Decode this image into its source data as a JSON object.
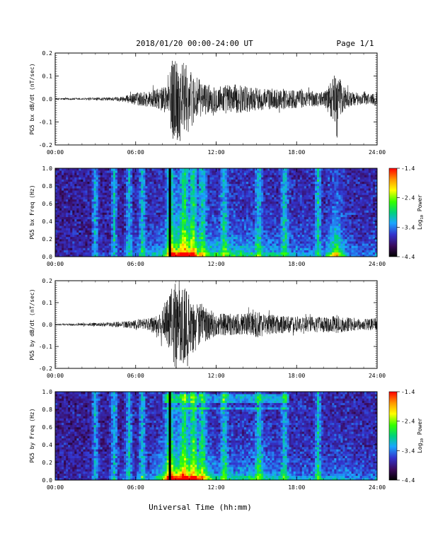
{
  "header": {
    "date_range": "2018/01/20  00:00-24:00 UT",
    "page": "Page 1/1"
  },
  "xlabel": "Universal Time (hh:mm)",
  "chart_data": [
    {
      "type": "line",
      "ylabel": "PG5 bx dB/dt (nT/sec)",
      "xlim": [
        0,
        24
      ],
      "ylim": [
        -0.2,
        0.2
      ],
      "x_ticks": [
        "00:00",
        "06:00",
        "12:00",
        "18:00",
        "24:00"
      ],
      "y_ticks": [
        "-0.2",
        "-0.1",
        "0.0",
        "0.1",
        "0.2"
      ],
      "envelope": {
        "hours": [
          0,
          2,
          4,
          5,
          5.5,
          6,
          7,
          8,
          8.5,
          8.8,
          9.1,
          9.5,
          10,
          10.5,
          11,
          12,
          13,
          14,
          15,
          16,
          17,
          18,
          19,
          20,
          21,
          21.2,
          21.5,
          22,
          23,
          24
        ],
        "amplitude": [
          0.004,
          0.005,
          0.007,
          0.012,
          0.018,
          0.028,
          0.035,
          0.05,
          0.09,
          0.2,
          0.2,
          0.17,
          0.13,
          0.1,
          0.07,
          0.06,
          0.065,
          0.06,
          0.05,
          0.045,
          0.045,
          0.04,
          0.035,
          0.03,
          0.12,
          0.09,
          0.06,
          0.03,
          0.025,
          0.03
        ]
      }
    },
    {
      "type": "heatmap",
      "ylabel": "PG5 bx Freq (Hz)",
      "xlim": [
        0,
        24
      ],
      "ylim": [
        0,
        1.0
      ],
      "x_ticks": [
        "00:00",
        "06:00",
        "12:00",
        "18:00",
        "24:00"
      ],
      "y_ticks": [
        "0.0",
        "0.2",
        "0.4",
        "0.6",
        "0.8",
        "1.0"
      ],
      "colorbar": {
        "label": "Log10 Power",
        "ticks": [
          "-1.4",
          "-2.4",
          "-3.4",
          "-4.4"
        ],
        "range": [
          -4.4,
          -1.4
        ]
      },
      "data_gap_hour": 8.55
    },
    {
      "type": "line",
      "ylabel": "PG5 by dB/dt (nT/sec)",
      "xlim": [
        0,
        24
      ],
      "ylim": [
        -0.2,
        0.2
      ],
      "x_ticks": [
        "00:00",
        "06:00",
        "12:00",
        "18:00",
        "24:00"
      ],
      "y_ticks": [
        "-0.2",
        "-0.1",
        "0.0",
        "0.1",
        "0.2"
      ],
      "envelope": {
        "hours": [
          0,
          2,
          4,
          5,
          6,
          7,
          7.5,
          8,
          8.5,
          8.8,
          9.1,
          9.5,
          10,
          10.5,
          11,
          12,
          13,
          14,
          15,
          16,
          17,
          18,
          19,
          20,
          21,
          22,
          23,
          24
        ],
        "amplitude": [
          0.004,
          0.006,
          0.01,
          0.014,
          0.02,
          0.03,
          0.045,
          0.07,
          0.14,
          0.2,
          0.2,
          0.18,
          0.14,
          0.12,
          0.09,
          0.05,
          0.05,
          0.05,
          0.06,
          0.045,
          0.04,
          0.035,
          0.035,
          0.035,
          0.04,
          0.03,
          0.025,
          0.03
        ]
      }
    },
    {
      "type": "heatmap",
      "ylabel": "PG5 by Freq (Hz)",
      "xlim": [
        0,
        24
      ],
      "ylim": [
        0,
        1.0
      ],
      "x_ticks": [
        "00:00",
        "06:00",
        "12:00",
        "18:00",
        "24:00"
      ],
      "y_ticks": [
        "0.0",
        "0.2",
        "0.4",
        "0.6",
        "0.8",
        "1.0"
      ],
      "colorbar": {
        "label": "Log10 Power",
        "ticks": [
          "-1.4",
          "-2.4",
          "-3.4",
          "-4.4"
        ],
        "range": [
          -4.4,
          -1.4
        ]
      },
      "data_gap_hour": 8.55
    }
  ]
}
